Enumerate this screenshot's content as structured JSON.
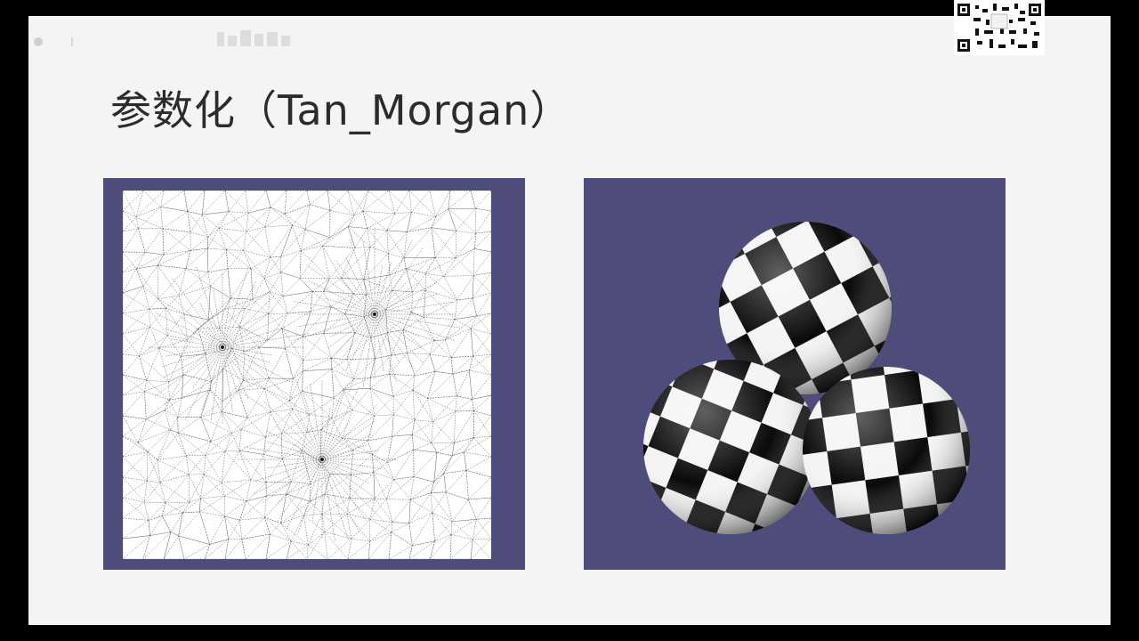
{
  "slide": {
    "title": "参数化（Tan_Morgan）"
  },
  "panels": {
    "left": {
      "icon": "parameterization-mesh-image"
    },
    "right": {
      "icon": "checkerboard-textured-spheres-image"
    }
  },
  "colors": {
    "panel_bg": "#4e4c7a",
    "slide_bg": "#f4f4f4",
    "frame_bg": "#000000",
    "title": "#2b2b2b"
  }
}
